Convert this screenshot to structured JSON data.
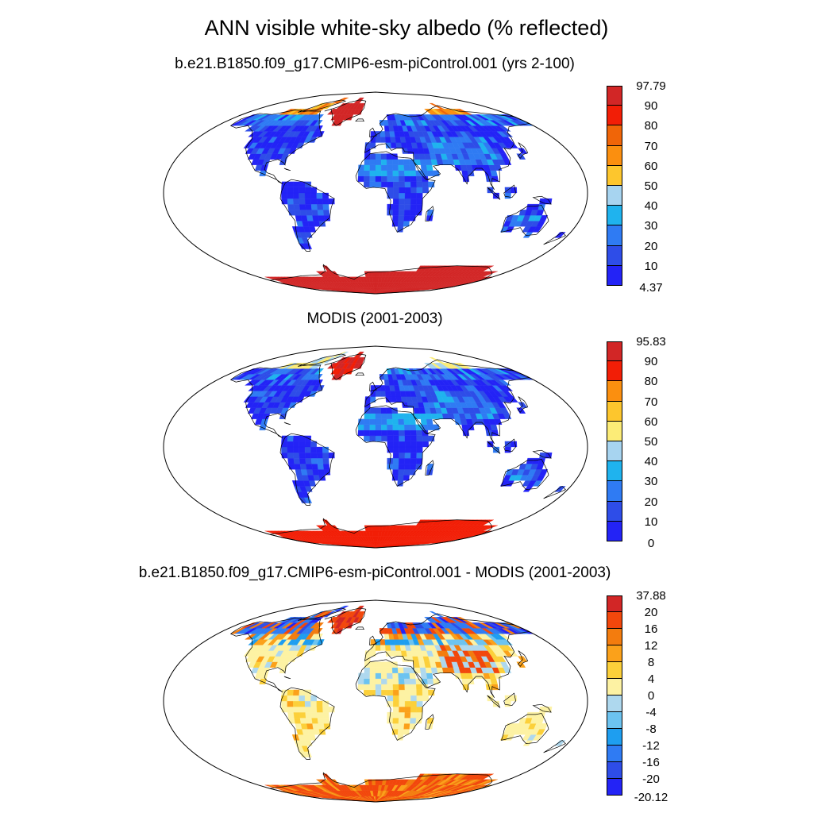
{
  "title": "ANN visible white-sky albedo (% reflected)",
  "panels": [
    {
      "title": "b.e21.B1850.f09_g17.CMIP6-esm-piControl.001 (yrs 2-100)",
      "palette": "albedo",
      "colorbar": {
        "colors": [
          "#2323f6",
          "#2e4de8",
          "#2f7bf3",
          "#1fb3ee",
          "#a7d4f0",
          "#fdc62d",
          "#fb8f0f",
          "#f06508",
          "#f21e06",
          "#d22626"
        ],
        "labels": [
          "4.37",
          "10",
          "20",
          "30",
          "40",
          "50",
          "60",
          "70",
          "80",
          "90",
          "97.79"
        ]
      }
    },
    {
      "title": "MODIS (2001-2003)",
      "palette": "albedo",
      "colorbar": {
        "colors": [
          "#2323f6",
          "#2e4de8",
          "#2f7bf3",
          "#1fb3ee",
          "#a7d4f0",
          "#fcec77",
          "#fdc62d",
          "#fb8f0f",
          "#f21e06",
          "#d22626"
        ],
        "labels": [
          "0",
          "10",
          "20",
          "30",
          "40",
          "50",
          "60",
          "70",
          "80",
          "90",
          "95.83"
        ]
      }
    },
    {
      "title": "b.e21.B1850.f09_g17.CMIP6-esm-piControl.001 - MODIS (2001-2003)",
      "palette": "diff",
      "colorbar": {
        "colors": [
          "#2323f6",
          "#2e4de8",
          "#2f7bf3",
          "#1e9ef0",
          "#6cc3f0",
          "#aed8ee",
          "#fdf2a3",
          "#fcd03a",
          "#fba11a",
          "#f37c0e",
          "#f2470c",
          "#d22626"
        ],
        "labels": [
          "-20.12",
          "-20",
          "-16",
          "-12",
          "-8",
          "-4",
          "0",
          "4",
          "8",
          "12",
          "16",
          "20",
          "37.88"
        ]
      }
    }
  ]
}
